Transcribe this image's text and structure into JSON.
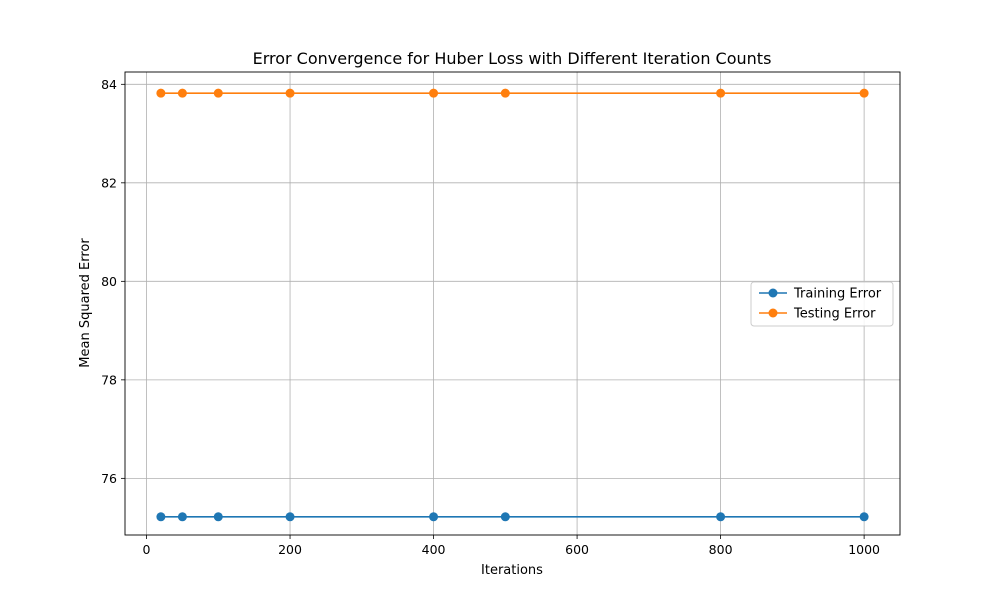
{
  "chart_data": {
    "type": "line",
    "title": "Error Convergence for Huber Loss with Different Iteration Counts",
    "xlabel": "Iterations",
    "ylabel": "Mean Squared Error",
    "x": [
      20,
      50,
      100,
      200,
      400,
      500,
      800,
      1000
    ],
    "xlim": [
      -30,
      1050
    ],
    "ylim": [
      74.85,
      84.25
    ],
    "xticks": [
      0,
      200,
      400,
      600,
      800,
      1000
    ],
    "yticks": [
      76,
      78,
      80,
      82,
      84
    ],
    "grid": true,
    "legend_position": "center-right",
    "series": [
      {
        "name": "Training Error",
        "color": "#1f77b4",
        "marker": "circle",
        "values": [
          75.22,
          75.22,
          75.22,
          75.22,
          75.22,
          75.22,
          75.22,
          75.22
        ]
      },
      {
        "name": "Testing Error",
        "color": "#ff7f0e",
        "marker": "circle",
        "values": [
          83.82,
          83.82,
          83.82,
          83.82,
          83.82,
          83.82,
          83.82,
          83.82
        ]
      }
    ]
  }
}
